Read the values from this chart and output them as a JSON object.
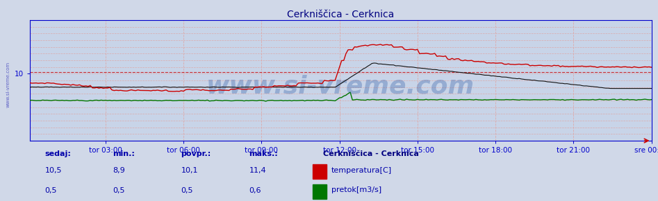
{
  "title": "Cerkniščica - Cerknica",
  "title_color": "#000080",
  "background_color": "#d0d8e8",
  "plot_bg_color": "#c8d4e8",
  "grid_color": "#ddaaaa",
  "x_labels": [
    "tor 03:00",
    "tor 06:00",
    "tor 09:00",
    "tor 12:00",
    "tor 15:00",
    "tor 18:00",
    "tor 21:00",
    "sre 00:00"
  ],
  "x_fracs": [
    0.125,
    0.25,
    0.375,
    0.5,
    0.625,
    0.75,
    0.875,
    1.0
  ],
  "ymin": 5,
  "ymax": 14,
  "ytick_val": 10,
  "temp_color": "#cc0000",
  "black_color": "#111111",
  "flow_color": "#007700",
  "avg_color": "#cc0000",
  "watermark_text": "www.si-vreme.com",
  "watermark_color": "#2050a0",
  "watermark_alpha": 0.3,
  "watermark_fontsize": 26,
  "legend_title": "Cerkniščica - Cerknica",
  "legend_title_color": "#000080",
  "legend_items": [
    "temperatura[C]",
    "pretok[m3/s]"
  ],
  "legend_colors": [
    "#cc0000",
    "#007700"
  ],
  "table_labels": [
    "sedaj:",
    "min.:",
    "povpr.:",
    "maks.:"
  ],
  "table_temp": [
    "10,5",
    "8,9",
    "10,1",
    "11,4"
  ],
  "table_flow": [
    "0,5",
    "0,5",
    "0,5",
    "0,6"
  ],
  "table_color": "#0000aa",
  "num_points": 288,
  "spine_color": "#0000cc",
  "tick_color": "#0000cc"
}
